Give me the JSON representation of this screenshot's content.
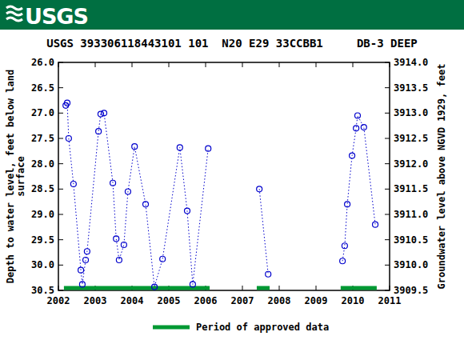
{
  "chart_data": {
    "type": "line",
    "logo": "USGS",
    "title": "USGS 393306118443101 101  N20 E29 33CCBB1     DB-3 DEEP",
    "y_label": [
      "Depth to water level, feet below land",
      "surface"
    ],
    "y2_label": "Groundwater level above NGVD 1929, feet",
    "x": [
      2002.2,
      2002.24,
      2002.28,
      2002.41,
      2002.61,
      2002.65,
      2002.74,
      2002.78,
      2003.09,
      2003.15,
      2003.24,
      2003.48,
      2003.57,
      2003.65,
      2003.78,
      2003.89,
      2004.07,
      2004.37,
      2004.61,
      2004.83,
      2005.3,
      2005.5,
      2005.65,
      2006.07,
      2006.8,
      2007.46,
      2007.7,
      2008.7,
      2009.72,
      2009.78,
      2009.85,
      2009.98,
      2010.09,
      2010.13,
      2010.3,
      2010.61
    ],
    "series": [
      {
        "color": "#0000cc",
        "marker": "circle-open",
        "line_style": "dotted",
        "values": [
          26.85,
          26.8,
          27.5,
          28.4,
          30.1,
          30.38,
          29.9,
          29.73,
          27.36,
          27.02,
          27.0,
          28.38,
          29.48,
          29.9,
          29.6,
          28.55,
          27.66,
          28.8,
          30.43,
          29.88,
          27.68,
          28.93,
          30.38,
          27.7,
          null,
          28.5,
          30.18,
          null,
          29.92,
          29.62,
          28.8,
          27.84,
          27.3,
          27.05,
          27.28,
          29.2
        ]
      }
    ],
    "xlim": [
      2002,
      2011
    ],
    "xticks": [
      2002,
      2003,
      2004,
      2005,
      2006,
      2007,
      2008,
      2009,
      2010,
      2011
    ],
    "ylim": [
      30.5,
      26.0
    ],
    "yticks": [
      {
        "value": 26.0,
        "label": "26.0"
      },
      {
        "value": 26.5,
        "label": "26.5"
      },
      {
        "value": 27.0,
        "label": "27.0"
      },
      {
        "value": 27.5,
        "label": "27.5"
      },
      {
        "value": 28.0,
        "label": "28.0"
      },
      {
        "value": 28.5,
        "label": "28.5"
      },
      {
        "value": 29.0,
        "label": "29.0"
      },
      {
        "value": 29.5,
        "label": "29.5"
      },
      {
        "value": 30.0,
        "label": "30.0"
      },
      {
        "value": 30.5,
        "label": "30.5"
      }
    ],
    "y2lim": [
      3909.5,
      3914.0
    ],
    "y2ticks": [
      {
        "value": 3914.0,
        "label": "3914.0"
      },
      {
        "value": 3913.5,
        "label": "3913.5"
      },
      {
        "value": 3913.0,
        "label": "3913.0"
      },
      {
        "value": 3912.5,
        "label": "3912.5"
      },
      {
        "value": 3912.0,
        "label": "3912.0"
      },
      {
        "value": 3911.5,
        "label": "3911.5"
      },
      {
        "value": 3911.0,
        "label": "3911.0"
      },
      {
        "value": 3910.5,
        "label": "3910.5"
      },
      {
        "value": 3910.0,
        "label": "3910.0"
      },
      {
        "value": 3909.5,
        "label": "3909.5"
      }
    ],
    "approved_periods": [
      [
        2002.15,
        2006.11
      ],
      [
        2007.39,
        2007.74
      ],
      [
        2009.67,
        2010.65
      ]
    ],
    "approved_color": "#009933",
    "approved_label": "Period of approved data",
    "grid": false
  }
}
